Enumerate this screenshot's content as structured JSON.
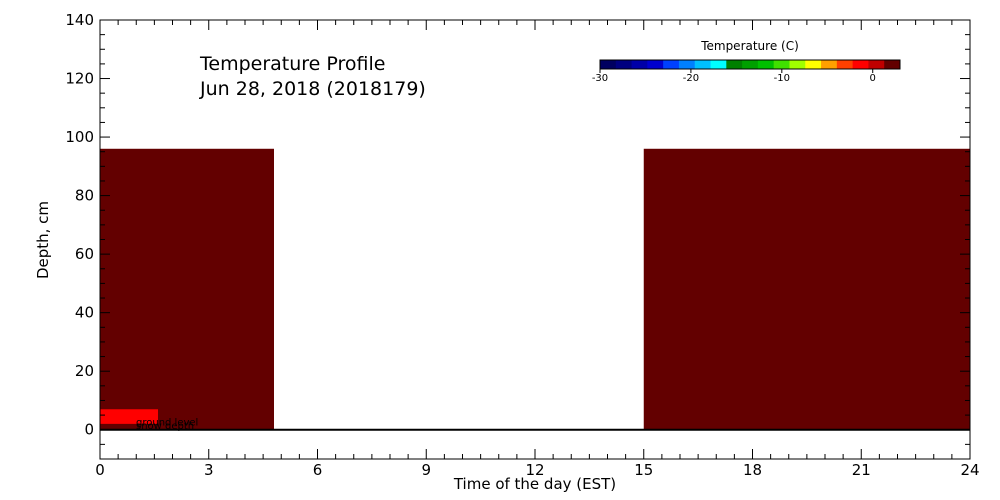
{
  "chart_data": {
    "type": "heatmap",
    "title_line1": "Temperature Profile",
    "title_line2": "Jun 28, 2018 (2018179)",
    "xlabel": "Time of the day (EST)",
    "ylabel": "Depth, cm",
    "xlim": [
      0,
      24
    ],
    "ylim": [
      -10,
      140
    ],
    "x_ticks": [
      0,
      3,
      6,
      9,
      12,
      15,
      18,
      21,
      24
    ],
    "y_ticks": [
      0,
      20,
      40,
      60,
      80,
      100,
      120,
      140
    ],
    "blocks": [
      {
        "x_start": 0,
        "x_end": 4.8,
        "depth_bottom": 0,
        "depth_top": 96,
        "color": "#630000"
      },
      {
        "x_start": 15,
        "x_end": 24,
        "depth_bottom": 0,
        "depth_top": 96,
        "color": "#630000"
      },
      {
        "x_start": 0,
        "x_end": 1.6,
        "depth_bottom": 2,
        "depth_top": 7,
        "color": "#ff0000"
      }
    ],
    "ground_level_depth": 0,
    "annotations": [
      "ground level",
      "snow depth"
    ],
    "colorbar": {
      "title": "Temperature (C)",
      "min": -30,
      "max": 3,
      "ticks": [
        -30,
        -20,
        -10,
        0
      ],
      "colors": [
        "#000060",
        "#000080",
        "#0000a8",
        "#0000d0",
        "#0040ff",
        "#0080ff",
        "#00c0ff",
        "#00ffff",
        "#008000",
        "#00a000",
        "#00c000",
        "#40e000",
        "#a0ff00",
        "#ffff00",
        "#ffa000",
        "#ff4000",
        "#ff0000",
        "#c00000",
        "#630000"
      ]
    }
  }
}
